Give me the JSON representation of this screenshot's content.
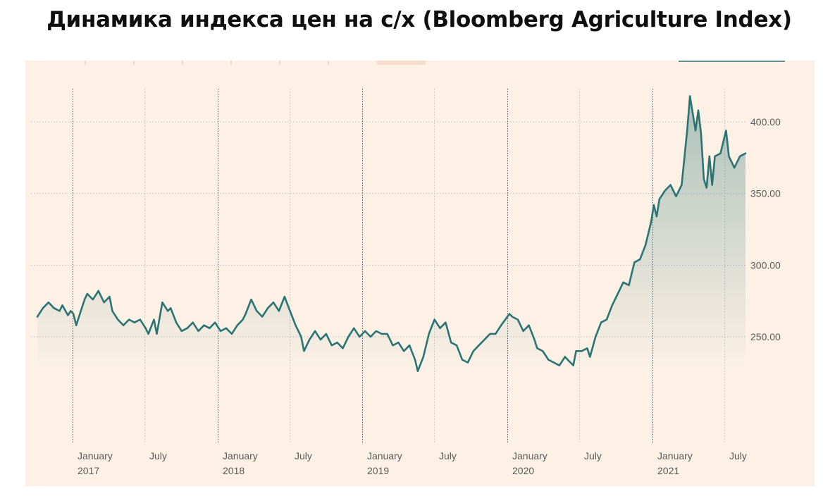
{
  "title": "Динамика индекса цен на с/х (Bloomberg Agriculture Index)",
  "colors": {
    "background": "#fdf1e6",
    "line": "#2b7474",
    "grid": "#bdbdbd",
    "title": "#0f0f0f",
    "tick_text": "#5b5b5b"
  },
  "chart_data": {
    "type": "area",
    "title": "Динамика индекса цен на с/х (Bloomberg Agriculture Index)",
    "xlabel": "",
    "ylabel": "",
    "x_range": [
      "2016-10-04",
      "2021-08-24"
    ],
    "ylim": [
      225,
      415
    ],
    "y_ticks": [
      {
        "value": 250,
        "label": "250.00"
      },
      {
        "value": 300,
        "label": "300.00"
      },
      {
        "value": 350,
        "label": "350.00"
      },
      {
        "value": 400,
        "label": "400.00"
      }
    ],
    "x_ticks": [
      {
        "date": "2017-01-01",
        "label": "January",
        "year": "2017",
        "major": true
      },
      {
        "date": "2017-07-01",
        "label": "July",
        "year": "",
        "major": false
      },
      {
        "date": "2018-01-01",
        "label": "January",
        "year": "2018",
        "major": true
      },
      {
        "date": "2018-07-01",
        "label": "July",
        "year": "",
        "major": false
      },
      {
        "date": "2019-01-01",
        "label": "January",
        "year": "2019",
        "major": true
      },
      {
        "date": "2019-07-01",
        "label": "July",
        "year": "",
        "major": false
      },
      {
        "date": "2020-01-01",
        "label": "January",
        "year": "2020",
        "major": true
      },
      {
        "date": "2020-07-01",
        "label": "July",
        "year": "",
        "major": false
      },
      {
        "date": "2021-01-01",
        "label": "January",
        "year": "2021",
        "major": true
      },
      {
        "date": "2021-07-01",
        "label": "July",
        "year": "",
        "major": false
      }
    ],
    "grid": true,
    "legend": "none",
    "series": [
      {
        "points": [
          [
            "2016-10-04",
            264
          ],
          [
            "2016-10-18",
            270
          ],
          [
            "2016-11-01",
            274
          ],
          [
            "2016-11-15",
            270
          ],
          [
            "2016-11-29",
            268
          ],
          [
            "2016-12-06",
            272
          ],
          [
            "2016-12-20",
            265
          ],
          [
            "2016-12-27",
            268
          ],
          [
            "2017-01-03",
            266
          ],
          [
            "2017-01-10",
            258
          ],
          [
            "2017-01-17",
            264
          ],
          [
            "2017-01-31",
            276
          ],
          [
            "2017-02-07",
            280
          ],
          [
            "2017-02-21",
            276
          ],
          [
            "2017-03-07",
            282
          ],
          [
            "2017-03-21",
            274
          ],
          [
            "2017-04-04",
            278
          ],
          [
            "2017-04-11",
            268
          ],
          [
            "2017-04-25",
            262
          ],
          [
            "2017-05-09",
            258
          ],
          [
            "2017-05-23",
            262
          ],
          [
            "2017-06-06",
            260
          ],
          [
            "2017-06-20",
            262
          ],
          [
            "2017-07-04",
            256
          ],
          [
            "2017-07-11",
            252
          ],
          [
            "2017-07-25",
            262
          ],
          [
            "2017-08-01",
            252
          ],
          [
            "2017-08-15",
            274
          ],
          [
            "2017-08-29",
            268
          ],
          [
            "2017-09-05",
            270
          ],
          [
            "2017-09-19",
            260
          ],
          [
            "2017-10-03",
            254
          ],
          [
            "2017-10-17",
            256
          ],
          [
            "2017-10-31",
            260
          ],
          [
            "2017-11-14",
            254
          ],
          [
            "2017-11-28",
            258
          ],
          [
            "2017-12-12",
            256
          ],
          [
            "2017-12-26",
            260
          ],
          [
            "2018-01-09",
            254
          ],
          [
            "2018-01-23",
            256
          ],
          [
            "2018-02-06",
            252
          ],
          [
            "2018-02-20",
            258
          ],
          [
            "2018-03-06",
            262
          ],
          [
            "2018-03-13",
            266
          ],
          [
            "2018-03-27",
            276
          ],
          [
            "2018-04-10",
            268
          ],
          [
            "2018-04-24",
            264
          ],
          [
            "2018-05-08",
            270
          ],
          [
            "2018-05-22",
            274
          ],
          [
            "2018-06-05",
            268
          ],
          [
            "2018-06-19",
            278
          ],
          [
            "2018-07-03",
            268
          ],
          [
            "2018-07-17",
            258
          ],
          [
            "2018-07-31",
            250
          ],
          [
            "2018-08-07",
            240
          ],
          [
            "2018-08-21",
            248
          ],
          [
            "2018-09-04",
            254
          ],
          [
            "2018-09-18",
            248
          ],
          [
            "2018-10-02",
            252
          ],
          [
            "2018-10-16",
            244
          ],
          [
            "2018-10-30",
            246
          ],
          [
            "2018-11-13",
            242
          ],
          [
            "2018-11-27",
            250
          ],
          [
            "2018-12-11",
            256
          ],
          [
            "2018-12-25",
            250
          ],
          [
            "2019-01-08",
            254
          ],
          [
            "2019-01-22",
            250
          ],
          [
            "2019-02-05",
            254
          ],
          [
            "2019-02-19",
            252
          ],
          [
            "2019-03-05",
            252
          ],
          [
            "2019-03-19",
            244
          ],
          [
            "2019-04-02",
            246
          ],
          [
            "2019-04-16",
            240
          ],
          [
            "2019-04-30",
            244
          ],
          [
            "2019-05-14",
            234
          ],
          [
            "2019-05-21",
            226
          ],
          [
            "2019-06-04",
            236
          ],
          [
            "2019-06-18",
            252
          ],
          [
            "2019-07-02",
            262
          ],
          [
            "2019-07-16",
            256
          ],
          [
            "2019-07-30",
            260
          ],
          [
            "2019-08-13",
            246
          ],
          [
            "2019-08-27",
            244
          ],
          [
            "2019-09-10",
            234
          ],
          [
            "2019-09-24",
            232
          ],
          [
            "2019-10-08",
            240
          ],
          [
            "2019-10-22",
            244
          ],
          [
            "2019-11-05",
            248
          ],
          [
            "2019-11-19",
            252
          ],
          [
            "2019-12-03",
            252
          ],
          [
            "2019-12-17",
            258
          ],
          [
            "2020-01-07",
            266
          ],
          [
            "2020-01-14",
            264
          ],
          [
            "2020-01-28",
            262
          ],
          [
            "2020-02-11",
            254
          ],
          [
            "2020-02-25",
            258
          ],
          [
            "2020-03-10",
            248
          ],
          [
            "2020-03-17",
            242
          ],
          [
            "2020-03-31",
            240
          ],
          [
            "2020-04-14",
            234
          ],
          [
            "2020-04-28",
            232
          ],
          [
            "2020-05-12",
            230
          ],
          [
            "2020-05-26",
            236
          ],
          [
            "2020-06-09",
            232
          ],
          [
            "2020-06-16",
            230
          ],
          [
            "2020-06-23",
            240
          ],
          [
            "2020-07-07",
            240
          ],
          [
            "2020-07-21",
            242
          ],
          [
            "2020-07-28",
            236
          ],
          [
            "2020-08-11",
            250
          ],
          [
            "2020-08-25",
            260
          ],
          [
            "2020-09-08",
            262
          ],
          [
            "2020-09-22",
            272
          ],
          [
            "2020-10-06",
            280
          ],
          [
            "2020-10-20",
            288
          ],
          [
            "2020-11-03",
            286
          ],
          [
            "2020-11-17",
            302
          ],
          [
            "2020-12-01",
            304
          ],
          [
            "2020-12-15",
            314
          ],
          [
            "2020-12-29",
            330
          ],
          [
            "2021-01-05",
            342
          ],
          [
            "2021-01-12",
            334
          ],
          [
            "2021-01-19",
            346
          ],
          [
            "2021-02-02",
            352
          ],
          [
            "2021-02-16",
            356
          ],
          [
            "2021-03-02",
            348
          ],
          [
            "2021-03-16",
            356
          ],
          [
            "2021-03-30",
            394
          ],
          [
            "2021-04-06",
            418
          ],
          [
            "2021-04-20",
            394
          ],
          [
            "2021-04-27",
            408
          ],
          [
            "2021-05-04",
            392
          ],
          [
            "2021-05-11",
            360
          ],
          [
            "2021-05-18",
            354
          ],
          [
            "2021-05-25",
            376
          ],
          [
            "2021-06-01",
            356
          ],
          [
            "2021-06-08",
            376
          ],
          [
            "2021-06-22",
            378
          ],
          [
            "2021-07-06",
            394
          ],
          [
            "2021-07-13",
            376
          ],
          [
            "2021-07-27",
            368
          ],
          [
            "2021-08-10",
            376
          ],
          [
            "2021-08-24",
            378
          ]
        ]
      }
    ]
  }
}
